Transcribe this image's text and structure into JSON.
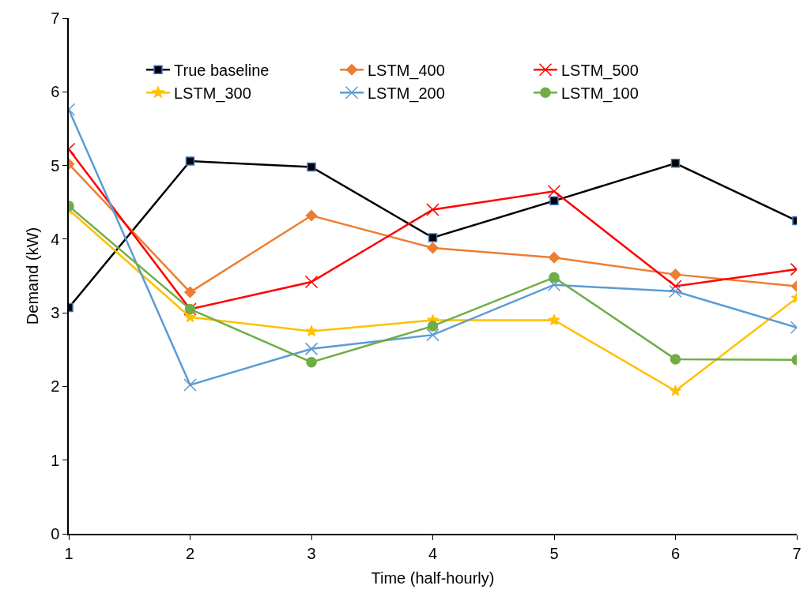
{
  "chart_data": {
    "type": "line",
    "xlabel": "Time (half-hourly)",
    "ylabel": "Demand (kW)",
    "x": [
      1,
      2,
      3,
      4,
      5,
      6,
      7
    ],
    "xlim": [
      1,
      7
    ],
    "xticks": [
      1,
      2,
      3,
      4,
      5,
      6,
      7
    ],
    "ylim": [
      0,
      7
    ],
    "yticks": [
      0,
      1,
      2,
      3,
      4,
      5,
      6,
      7
    ],
    "grid": false,
    "legend": "top",
    "line_style": "solid",
    "series": [
      {
        "name": "True baseline",
        "color": "#000000",
        "marker": "square",
        "values": [
          3.07,
          5.06,
          4.98,
          4.02,
          4.52,
          5.03,
          4.25
        ]
      },
      {
        "name": "LSTM_400",
        "color": "#ed7d31",
        "marker": "diamond",
        "values": [
          5.02,
          3.28,
          4.32,
          3.88,
          3.75,
          3.52,
          3.36
        ]
      },
      {
        "name": "LSTM_500",
        "color": "#ff0000",
        "marker": "cross",
        "values": [
          5.22,
          3.05,
          3.42,
          4.4,
          4.65,
          3.36,
          3.59
        ]
      },
      {
        "name": "LSTM_300",
        "color": "#ffc000",
        "marker": "star",
        "values": [
          4.4,
          2.94,
          2.75,
          2.9,
          2.9,
          1.94,
          3.2
        ]
      },
      {
        "name": "LSTM_200",
        "color": "#5b9bd5",
        "marker": "cross",
        "values": [
          5.76,
          2.02,
          2.51,
          2.7,
          3.38,
          3.29,
          2.8
        ]
      },
      {
        "name": "LSTM_100",
        "color": "#70ad47",
        "marker": "circle",
        "values": [
          4.45,
          3.05,
          2.33,
          2.82,
          3.48,
          2.37,
          2.36
        ]
      }
    ]
  }
}
